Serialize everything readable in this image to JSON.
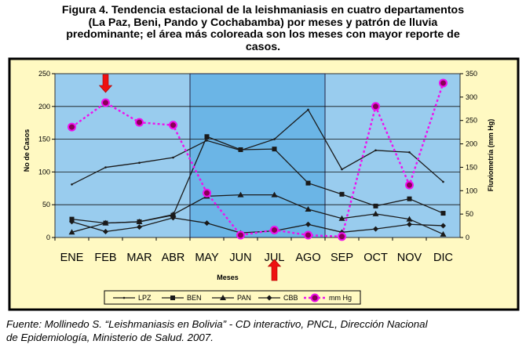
{
  "figure": {
    "caption_line1": "Figura 4. Tendencia estacional de la leishmaniasis en cuatro departamentos",
    "caption_line2": "(La Paz, Beni, Pando y Cochabamba) por meses y patrón de lluvia",
    "caption_line3": "predominante; el área más coloreada son los meses con mayor reporte de",
    "caption_line4": "casos.",
    "source_line1": "Fuente: Mollinedo S. “Leishmaniasis en Bolivia” - CD interactivo, PNCL, Dirección Nacional",
    "source_line2": "de Epidemiología, Ministerio de Salud. 2007."
  },
  "chart_data": {
    "type": "line",
    "categories": [
      "ENE",
      "FEB",
      "MAR",
      "ABR",
      "MAY",
      "JUN",
      "JUL",
      "AGO",
      "SEP",
      "OCT",
      "NOV",
      "DIC"
    ],
    "xlabel": "Meses",
    "ylabel": "No de Casos",
    "ylabel_right": "Fluviometría (mm Hg)",
    "ylim": [
      0,
      250
    ],
    "ylim_right": [
      0,
      350
    ],
    "yticks": [
      0,
      50,
      100,
      150,
      200,
      250
    ],
    "yticks_right": [
      0,
      50,
      100,
      150,
      200,
      250,
      300,
      350
    ],
    "highlight_range": [
      "MAY",
      "AGO"
    ],
    "arrows": [
      "FEB",
      "JUL"
    ],
    "grid": true,
    "legend_position": "bottom",
    "series": [
      {
        "name": "LPZ",
        "axis": "left",
        "marker": "none",
        "values": [
          81,
          107,
          114,
          122,
          148,
          133,
          150,
          195,
          104,
          133,
          130,
          85
        ]
      },
      {
        "name": "BEN",
        "axis": "left",
        "marker": "square",
        "values": [
          28,
          22,
          24,
          34,
          154,
          134,
          135,
          83,
          66,
          48,
          59,
          37
        ]
      },
      {
        "name": "PAN",
        "axis": "left",
        "marker": "triangle",
        "values": [
          8,
          22,
          24,
          35,
          63,
          65,
          65,
          43,
          29,
          36,
          28,
          5
        ]
      },
      {
        "name": "CBB",
        "axis": "left",
        "marker": "diamond",
        "values": [
          24,
          9,
          16,
          30,
          22,
          7,
          10,
          20,
          8,
          13,
          20,
          18
        ]
      },
      {
        "name": "mm Hg",
        "axis": "right",
        "marker": "circle",
        "values": [
          236,
          288,
          246,
          240,
          95,
          5,
          16,
          5,
          2,
          280,
          112,
          330
        ]
      }
    ],
    "colors": {
      "plot_bg": "#99ccee",
      "highlight_bg": "#6bb5e6",
      "frame_bg": "#fff9c2",
      "line": "#1a1a1a",
      "rain": "#ee11ee",
      "rain_marker": "#880055",
      "arrow": "#ee1111"
    }
  }
}
